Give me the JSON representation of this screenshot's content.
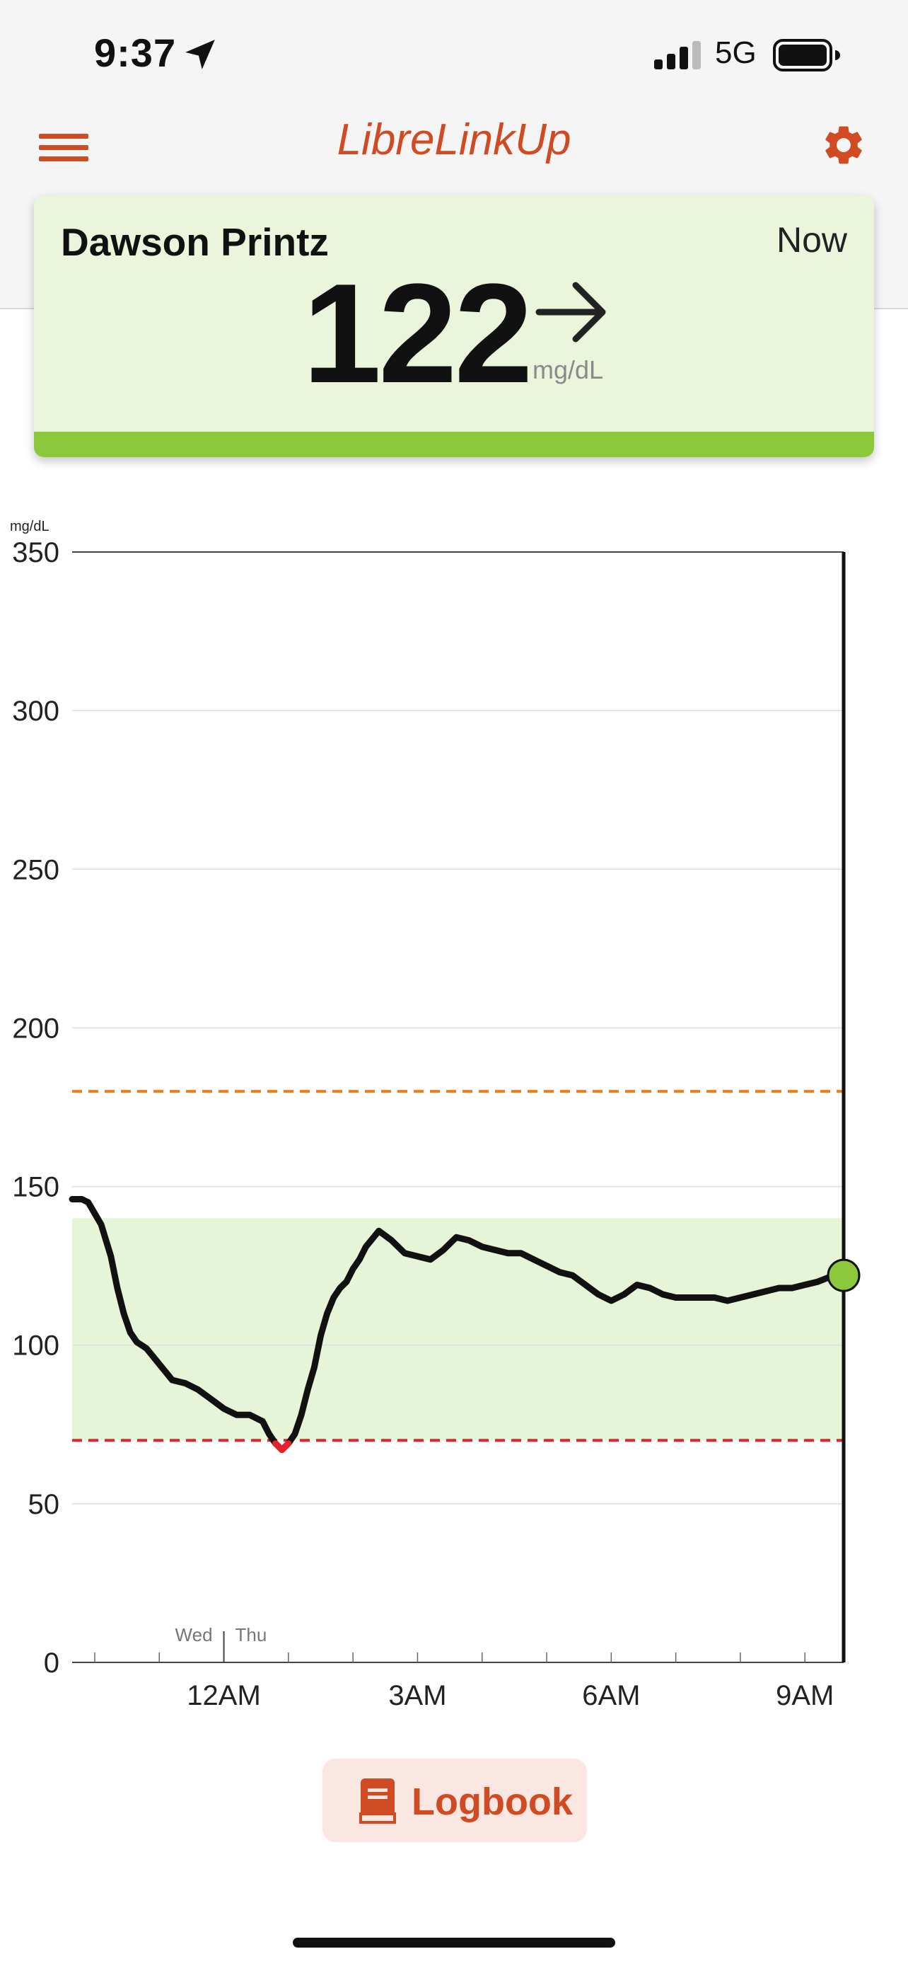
{
  "status_bar": {
    "time": "9:37",
    "network": "5G"
  },
  "app": {
    "title": "LibreLinkUp"
  },
  "reading_card": {
    "patient_name": "Dawson Printz",
    "time_label": "Now",
    "value": "122",
    "unit": "mg/dL",
    "trend_icon": "arrow-right-icon",
    "status_color": "#8cc83c"
  },
  "chart_data": {
    "type": "line",
    "y_unit": "mg/dL",
    "ylim": [
      0,
      350
    ],
    "y_ticks": [
      0,
      50,
      100,
      150,
      200,
      250,
      300,
      350
    ],
    "x_tick_labels": [
      "12AM",
      "3AM",
      "6AM",
      "9AM"
    ],
    "day_labels": [
      "Wed",
      "Thu"
    ],
    "target_range": [
      70,
      140
    ],
    "high_threshold": 180,
    "low_threshold": 70,
    "colors": {
      "line": "#111111",
      "low": "#e2232e",
      "high_line": "#f07c1c",
      "low_line": "#e2232e",
      "range_fill": "#e6f4d8",
      "current_point": "#8cc83c"
    },
    "series": [
      {
        "x": [
          -2.35,
          -2.2,
          -2.1,
          -1.9,
          -1.75,
          -1.65,
          -1.55,
          -1.45,
          -1.35,
          -1.2,
          -1.0,
          -0.8,
          -0.6,
          -0.4,
          -0.2,
          0.0,
          0.2,
          0.4,
          0.6,
          0.7,
          0.8,
          0.9,
          1.0,
          1.1,
          1.2,
          1.3,
          1.4,
          1.5,
          1.6,
          1.7,
          1.8,
          1.9,
          2.0,
          2.1,
          2.2,
          2.4,
          2.6,
          2.8,
          3.0,
          3.2,
          3.4,
          3.6,
          3.8,
          4.0,
          4.2,
          4.4,
          4.6,
          4.8,
          5.0,
          5.2,
          5.4,
          5.6,
          5.8,
          6.0,
          6.2,
          6.4,
          6.6,
          6.8,
          7.0,
          7.2,
          7.4,
          7.6,
          7.8,
          8.0,
          8.2,
          8.4,
          8.6,
          8.8,
          9.0,
          9.2,
          9.45,
          9.6
        ],
        "y": [
          146,
          146,
          145,
          138,
          128,
          118,
          110,
          104,
          101,
          99,
          94,
          89,
          88,
          86,
          83,
          80,
          78,
          78,
          76,
          72,
          69,
          67,
          69,
          72,
          78,
          86,
          93,
          103,
          110,
          115,
          118,
          120,
          124,
          127,
          131,
          136,
          133,
          129,
          128,
          127,
          130,
          134,
          133,
          131,
          130,
          129,
          129,
          127,
          125,
          123,
          122,
          119,
          116,
          114,
          116,
          119,
          118,
          116,
          115,
          115,
          115,
          115,
          114,
          115,
          116,
          117,
          118,
          118,
          119,
          120,
          122,
          122
        ]
      }
    ],
    "current_value": 122
  },
  "logbook": {
    "label": "Logbook",
    "icon": "book-icon"
  }
}
